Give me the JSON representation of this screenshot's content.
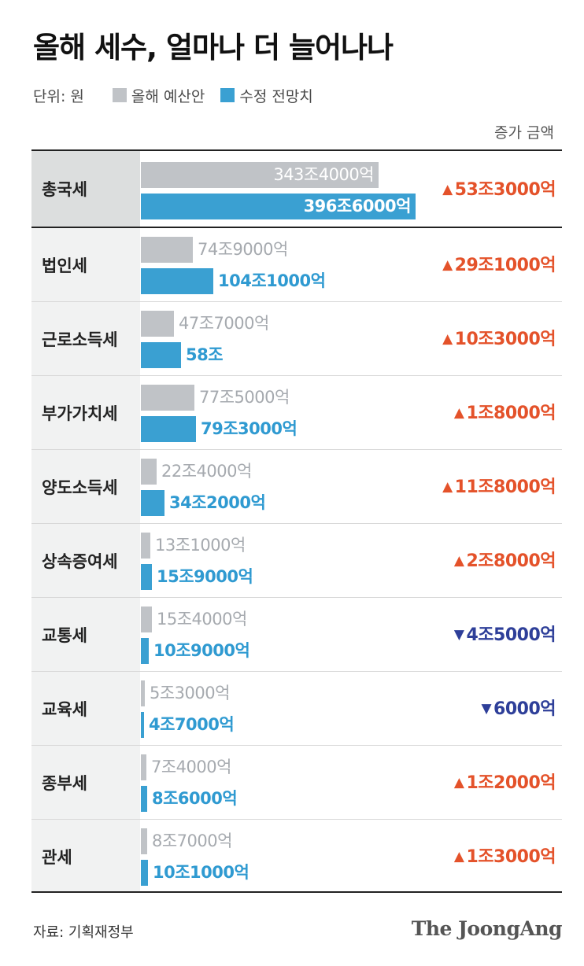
{
  "title": "올해 세수, 얼마나 더 늘어나나",
  "legend": {
    "unit": "단위: 원",
    "items": [
      {
        "label": "올해 예산안",
        "color": "#c0c3c7"
      },
      {
        "label": "수정 전망치",
        "color": "#3aa0d2"
      }
    ]
  },
  "increase_header": "증가 금액",
  "source": "자료: 기획재정부",
  "logo": "The JoongAng",
  "colors": {
    "up": "#e4522a",
    "down": "#2e3f99",
    "budget": "#c0c3c7",
    "revised": "#3aa0d2"
  },
  "chart_data": {
    "type": "bar",
    "orientation": "horizontal",
    "unit": "조원",
    "categories": [
      "총국세",
      "법인세",
      "근로소득세",
      "부가가치세",
      "양도소득세",
      "상속증여세",
      "교통세",
      "교육세",
      "종부세",
      "관세"
    ],
    "series": [
      {
        "name": "올해 예산안",
        "values": [
          343.4,
          74.9,
          47.7,
          77.5,
          22.4,
          13.1,
          15.4,
          5.3,
          7.4,
          8.7
        ],
        "labels": [
          "343조4000억",
          "74조9000억",
          "47조7000억",
          "77조5000억",
          "22조4000억",
          "13조1000억",
          "15조4000억",
          "5조3000억",
          "7조4000억",
          "8조7000억"
        ]
      },
      {
        "name": "수정 전망치",
        "values": [
          396.6,
          104.1,
          58.0,
          79.3,
          34.2,
          15.9,
          10.9,
          4.7,
          8.6,
          10.1
        ],
        "labels": [
          "396조6000억",
          "104조1000억",
          "58조",
          "79조3000억",
          "34조2000억",
          "15조9000억",
          "10조9000억",
          "4조7000억",
          "8조6000억",
          "10조1000억"
        ]
      }
    ],
    "changes": [
      {
        "direction": "up",
        "label": "53조3000억"
      },
      {
        "direction": "up",
        "label": "29조1000억"
      },
      {
        "direction": "up",
        "label": "10조3000억"
      },
      {
        "direction": "up",
        "label": "1조8000억"
      },
      {
        "direction": "up",
        "label": "11조8000억"
      },
      {
        "direction": "up",
        "label": "2조8000억"
      },
      {
        "direction": "down",
        "label": "4조5000억"
      },
      {
        "direction": "down",
        "label": "6000억"
      },
      {
        "direction": "up",
        "label": "1조2000억"
      },
      {
        "direction": "up",
        "label": "1조3000억"
      }
    ]
  }
}
